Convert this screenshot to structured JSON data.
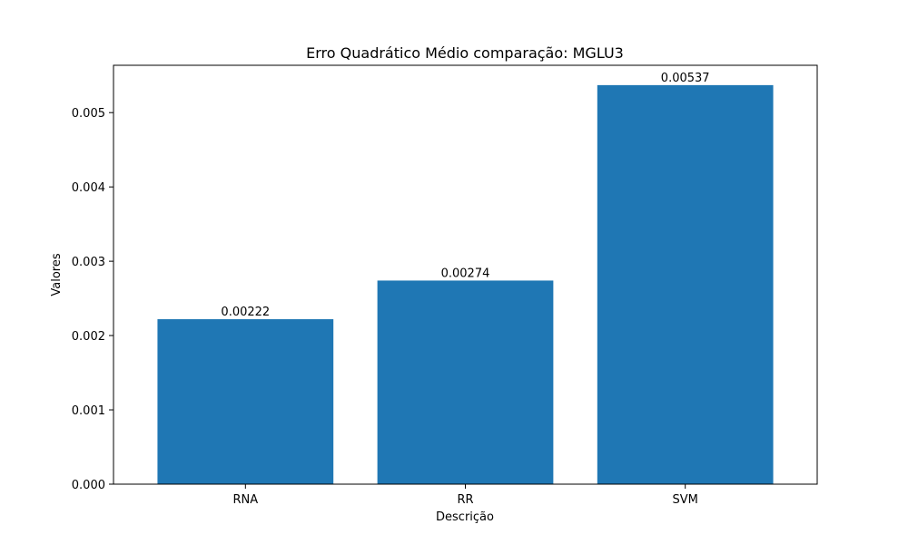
{
  "chart_data": {
    "type": "bar",
    "title": "Erro Quadrático Médio comparação: MGLU3",
    "xlabel": "Descrição",
    "ylabel": "Valores",
    "categories": [
      "RNA",
      "RR",
      "SVM"
    ],
    "values": [
      0.00222,
      0.00274,
      0.00537
    ],
    "data_labels": [
      "0.00222",
      "0.00274",
      "0.00537"
    ],
    "ylim": [
      0,
      0.005637
    ],
    "yticks": [
      0,
      0.001,
      0.002,
      0.003,
      0.004,
      0.005
    ],
    "ytick_labels": [
      "0.000",
      "0.001",
      "0.002",
      "0.003",
      "0.004",
      "0.005"
    ],
    "bar_color": "#1f77b4",
    "grid": false,
    "legend": "none"
  }
}
